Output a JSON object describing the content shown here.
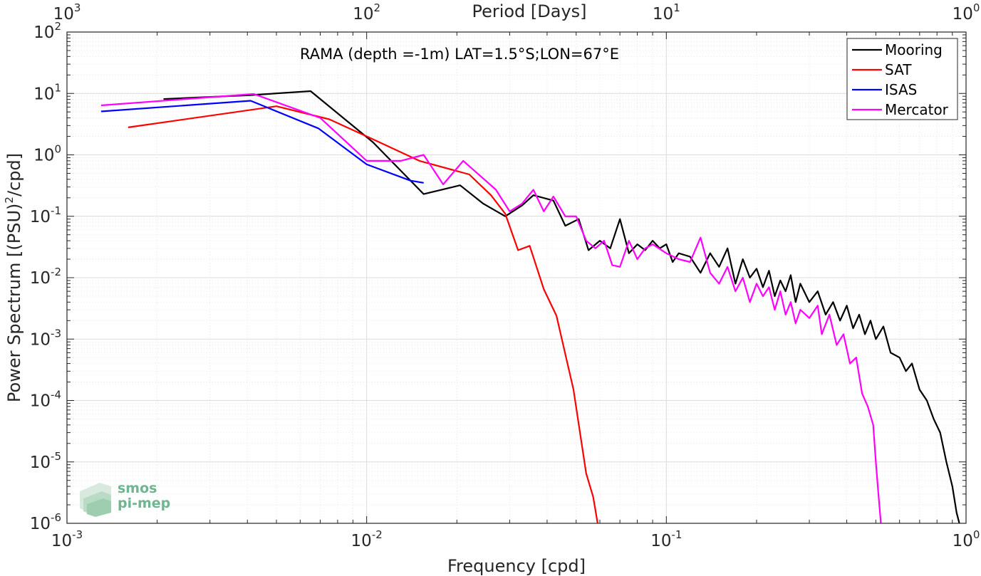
{
  "chart_data": {
    "type": "line",
    "title": "RAMA (depth =-1m) LAT=1.5°S;LON=67°E",
    "xlabel": "Frequency [cpd]",
    "ylabel": "Power Spectrum [(PSU)",
    "ylabel_sup": "2",
    "ylabel_tail": "/cpd]",
    "top_xlabel": "Period [Days]",
    "xscale": "log",
    "yscale": "log",
    "xlim": [
      0.001,
      1
    ],
    "ylim": [
      1e-06,
      100
    ],
    "grid": true,
    "legend_position": "top-right",
    "x_ticks": [
      {
        "value": 0.001,
        "base": "10",
        "exp": "-3"
      },
      {
        "value": 0.01,
        "base": "10",
        "exp": "-2"
      },
      {
        "value": 0.1,
        "base": "10",
        "exp": "-1"
      },
      {
        "value": 1,
        "base": "10",
        "exp": "0"
      }
    ],
    "y_ticks": [
      {
        "value": 1e-06,
        "base": "10",
        "exp": "-6"
      },
      {
        "value": 1e-05,
        "base": "10",
        "exp": "-5"
      },
      {
        "value": 0.0001,
        "base": "10",
        "exp": "-4"
      },
      {
        "value": 0.001,
        "base": "10",
        "exp": "-3"
      },
      {
        "value": 0.01,
        "base": "10",
        "exp": "-2"
      },
      {
        "value": 0.1,
        "base": "10",
        "exp": "-1"
      },
      {
        "value": 1,
        "base": "10",
        "exp": "0"
      },
      {
        "value": 10,
        "base": "10",
        "exp": "1"
      },
      {
        "value": 100,
        "base": "10",
        "exp": "2"
      }
    ],
    "top_ticks": [
      {
        "value": 0.001,
        "base": "10",
        "exp": "3"
      },
      {
        "value": 0.01,
        "base": "10",
        "exp": "2"
      },
      {
        "value": 0.1,
        "base": "10",
        "exp": "1"
      },
      {
        "value": 1,
        "base": "10",
        "exp": "0"
      }
    ],
    "series": [
      {
        "name": "Mooring",
        "color": "#000000",
        "points": [
          [
            0.0021,
            8.1
          ],
          [
            0.0041,
            9.4
          ],
          [
            0.0065,
            10.9
          ],
          [
            0.0105,
            1.6
          ],
          [
            0.0155,
            0.23
          ],
          [
            0.0205,
            0.32
          ],
          [
            0.0245,
            0.16
          ],
          [
            0.029,
            0.1
          ],
          [
            0.033,
            0.15
          ],
          [
            0.036,
            0.22
          ],
          [
            0.042,
            0.18
          ],
          [
            0.046,
            0.07
          ],
          [
            0.051,
            0.09
          ],
          [
            0.055,
            0.028
          ],
          [
            0.06,
            0.04
          ],
          [
            0.065,
            0.03
          ],
          [
            0.07,
            0.09
          ],
          [
            0.075,
            0.025
          ],
          [
            0.08,
            0.035
          ],
          [
            0.085,
            0.028
          ],
          [
            0.09,
            0.04
          ],
          [
            0.095,
            0.03
          ],
          [
            0.1,
            0.035
          ],
          [
            0.105,
            0.018
          ],
          [
            0.11,
            0.025
          ],
          [
            0.12,
            0.022
          ],
          [
            0.13,
            0.012
          ],
          [
            0.14,
            0.025
          ],
          [
            0.15,
            0.015
          ],
          [
            0.16,
            0.03
          ],
          [
            0.17,
            0.008
          ],
          [
            0.18,
            0.02
          ],
          [
            0.19,
            0.01
          ],
          [
            0.2,
            0.014
          ],
          [
            0.21,
            0.007
          ],
          [
            0.22,
            0.013
          ],
          [
            0.23,
            0.005
          ],
          [
            0.24,
            0.009
          ],
          [
            0.25,
            0.006
          ],
          [
            0.26,
            0.011
          ],
          [
            0.27,
            0.004
          ],
          [
            0.28,
            0.008
          ],
          [
            0.3,
            0.004
          ],
          [
            0.32,
            0.006
          ],
          [
            0.34,
            0.0025
          ],
          [
            0.36,
            0.004
          ],
          [
            0.38,
            0.002
          ],
          [
            0.4,
            0.0035
          ],
          [
            0.42,
            0.0015
          ],
          [
            0.44,
            0.0025
          ],
          [
            0.46,
            0.0012
          ],
          [
            0.48,
            0.002
          ],
          [
            0.5,
            0.001
          ],
          [
            0.53,
            0.0016
          ],
          [
            0.56,
            0.0006
          ],
          [
            0.6,
            0.0005
          ],
          [
            0.63,
            0.0003
          ],
          [
            0.66,
            0.0004
          ],
          [
            0.7,
            0.00015
          ],
          [
            0.74,
            0.0001
          ],
          [
            0.78,
            5e-05
          ],
          [
            0.82,
            3e-05
          ],
          [
            0.86,
            1e-05
          ],
          [
            0.9,
            4e-06
          ],
          [
            0.93,
            1.5e-06
          ],
          [
            0.95,
            1e-06
          ]
        ]
      },
      {
        "name": "SAT",
        "color": "#ff0000",
        "points": [
          [
            0.0016,
            2.8
          ],
          [
            0.005,
            6.2
          ],
          [
            0.0075,
            3.8
          ],
          [
            0.01,
            2.0
          ],
          [
            0.015,
            0.8
          ],
          [
            0.022,
            0.48
          ],
          [
            0.026,
            0.22
          ],
          [
            0.029,
            0.11
          ],
          [
            0.032,
            0.028
          ],
          [
            0.035,
            0.033
          ],
          [
            0.039,
            0.0065
          ],
          [
            0.043,
            0.0024
          ],
          [
            0.049,
            0.00015
          ],
          [
            0.054,
            6.5e-06
          ],
          [
            0.057,
            2.7e-06
          ],
          [
            0.059,
            1e-06
          ]
        ]
      },
      {
        "name": "ISAS",
        "color": "#0000ff",
        "points": [
          [
            0.0013,
            5.1
          ],
          [
            0.0041,
            7.6
          ],
          [
            0.0069,
            2.7
          ],
          [
            0.01,
            0.7
          ],
          [
            0.014,
            0.38
          ],
          [
            0.0155,
            0.35
          ]
        ]
      },
      {
        "name": "Mercator",
        "color": "#ff00ff",
        "points": [
          [
            0.0013,
            6.4
          ],
          [
            0.0042,
            9.8
          ],
          [
            0.007,
            4.0
          ],
          [
            0.01,
            0.8
          ],
          [
            0.013,
            0.8
          ],
          [
            0.0155,
            1.0
          ],
          [
            0.018,
            0.33
          ],
          [
            0.021,
            0.8
          ],
          [
            0.024,
            0.45
          ],
          [
            0.027,
            0.27
          ],
          [
            0.03,
            0.12
          ],
          [
            0.033,
            0.16
          ],
          [
            0.036,
            0.27
          ],
          [
            0.039,
            0.12
          ],
          [
            0.042,
            0.21
          ],
          [
            0.046,
            0.1
          ],
          [
            0.05,
            0.1
          ],
          [
            0.054,
            0.04
          ],
          [
            0.058,
            0.03
          ],
          [
            0.062,
            0.04
          ],
          [
            0.066,
            0.016
          ],
          [
            0.07,
            0.015
          ],
          [
            0.075,
            0.04
          ],
          [
            0.08,
            0.02
          ],
          [
            0.085,
            0.03
          ],
          [
            0.09,
            0.035
          ],
          [
            0.1,
            0.025
          ],
          [
            0.11,
            0.02
          ],
          [
            0.12,
            0.018
          ],
          [
            0.13,
            0.045
          ],
          [
            0.14,
            0.012
          ],
          [
            0.15,
            0.008
          ],
          [
            0.16,
            0.015
          ],
          [
            0.17,
            0.006
          ],
          [
            0.18,
            0.01
          ],
          [
            0.19,
            0.004
          ],
          [
            0.2,
            0.008
          ],
          [
            0.21,
            0.005
          ],
          [
            0.22,
            0.007
          ],
          [
            0.23,
            0.003
          ],
          [
            0.24,
            0.006
          ],
          [
            0.25,
            0.0025
          ],
          [
            0.26,
            0.004
          ],
          [
            0.27,
            0.0018
          ],
          [
            0.28,
            0.003
          ],
          [
            0.3,
            0.0022
          ],
          [
            0.32,
            0.0035
          ],
          [
            0.33,
            0.0012
          ],
          [
            0.35,
            0.0025
          ],
          [
            0.37,
            0.0008
          ],
          [
            0.39,
            0.0012
          ],
          [
            0.41,
            0.0004
          ],
          [
            0.43,
            0.0005
          ],
          [
            0.45,
            0.00013
          ],
          [
            0.47,
            8e-05
          ],
          [
            0.49,
            4e-05
          ],
          [
            0.5,
            1e-05
          ],
          [
            0.51,
            3e-06
          ],
          [
            0.52,
            1e-06
          ]
        ]
      }
    ]
  },
  "logo": {
    "line1": "smos",
    "line2": "pi-mep"
  }
}
